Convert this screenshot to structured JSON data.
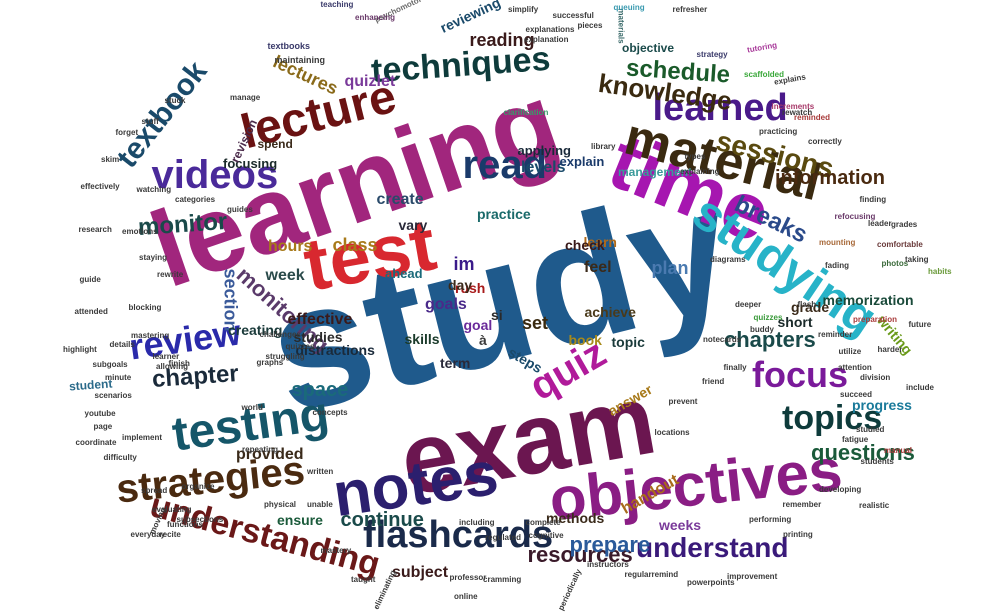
{
  "cloud": {
    "words": [
      {
        "text": "study",
        "color": "#1f5a8c"
      },
      {
        "text": "learning",
        "color": "#a1267d"
      },
      {
        "text": "exam",
        "color": "#6b1650"
      },
      {
        "text": "test",
        "color": "#d8282f"
      },
      {
        "text": "notes",
        "color": "#2b1f6e"
      },
      {
        "text": "time",
        "color": "#a616b0"
      },
      {
        "text": "objectives",
        "color": "#8a1d84"
      },
      {
        "text": "material",
        "color": "#3a2a10"
      },
      {
        "text": "studying",
        "color": "#27b3c8"
      },
      {
        "text": "testing",
        "color": "#155669"
      },
      {
        "text": "lecture",
        "color": "#6a1212"
      },
      {
        "text": "strategies",
        "color": "#4a2a10"
      },
      {
        "text": "flashcards",
        "color": "#1a2a4a"
      },
      {
        "text": "understanding",
        "color": "#6a1818"
      },
      {
        "text": "techniques",
        "color": "#0e3b3b"
      },
      {
        "text": "learned",
        "color": "#4a1a8a"
      },
      {
        "text": "read",
        "color": "#1a3a6a"
      },
      {
        "text": "review",
        "color": "#2a2aaa"
      },
      {
        "text": "videos",
        "color": "#4a2a9a"
      },
      {
        "text": "focus",
        "color": "#7a1a9a"
      },
      {
        "text": "topics",
        "color": "#0e3b3b"
      },
      {
        "text": "textbook",
        "color": "#1a4a6a"
      },
      {
        "text": "understand",
        "color": "#3a1a7a"
      },
      {
        "text": "sessions",
        "color": "#5a4a10"
      },
      {
        "text": "knowledge",
        "color": "#3a2a10"
      },
      {
        "text": "schedule",
        "color": "#1a5a2a"
      },
      {
        "text": "chapter",
        "color": "#1a2a3a"
      },
      {
        "text": "monitor",
        "color": "#1a4a4a"
      },
      {
        "text": "breaks",
        "color": "#2a4a8a"
      },
      {
        "text": "questions",
        "color": "#1a5a3a"
      },
      {
        "text": "quiz",
        "color": "#b01a9a"
      },
      {
        "text": "resources",
        "color": "#3a1a2a"
      },
      {
        "text": "information",
        "color": "#4a2a10"
      },
      {
        "text": "chapters",
        "color": "#1a4a4a"
      },
      {
        "text": "prepare",
        "color": "#2a5a9a"
      },
      {
        "text": "continue",
        "color": "#1a4a4a"
      },
      {
        "text": "space",
        "color": "#1a6a7a"
      },
      {
        "text": "reading",
        "color": "#3a1a1a"
      },
      {
        "text": "monitoring",
        "color": "#5a3a6a"
      },
      {
        "text": "lectures",
        "color": "#8a6a1a"
      },
      {
        "text": "quizlet",
        "color": "#7a3a9a"
      },
      {
        "text": "section",
        "color": "#3a5a9a"
      },
      {
        "text": "class",
        "color": "#a87a1a"
      },
      {
        "text": "create",
        "color": "#2a4a6a"
      },
      {
        "text": "week",
        "color": "#2a4a4a"
      },
      {
        "text": "plan",
        "color": "#4a7ab0"
      },
      {
        "text": "feel",
        "color": "#3a2a1a"
      },
      {
        "text": "set",
        "color": "#3a2a10"
      },
      {
        "text": "im",
        "color": "#3a1a8a"
      },
      {
        "text": "rush",
        "color": "#a81a1a"
      },
      {
        "text": "learn",
        "color": "#b06a1a"
      },
      {
        "text": "levels",
        "color": "#1a4a6a"
      },
      {
        "text": "hours",
        "color": "#a87a1a"
      },
      {
        "text": "memorization",
        "color": "#1a4a3a"
      },
      {
        "text": "writing",
        "color": "#6a9a1a"
      },
      {
        "text": "provided",
        "color": "#3a2a1a"
      },
      {
        "text": "handout",
        "color": "#a86a1a"
      },
      {
        "text": "progress",
        "color": "#1a7a9a"
      },
      {
        "text": "subject",
        "color": "#3a1a1a"
      },
      {
        "text": "methods",
        "color": "#3a2a1a"
      },
      {
        "text": "ensure",
        "color": "#1a5a3a"
      },
      {
        "text": "weeks",
        "color": "#7a3a9a"
      },
      {
        "text": "effective",
        "color": "#3a1a1a"
      },
      {
        "text": "creating",
        "color": "#1a3a3a"
      },
      {
        "text": "studies",
        "color": "#2a2a2a"
      },
      {
        "text": "distractions",
        "color": "#1a2a3a"
      },
      {
        "text": "grade",
        "color": "#3a2a1a"
      },
      {
        "text": "short",
        "color": "#1a2a2a"
      },
      {
        "text": "topic",
        "color": "#1a3a3a"
      },
      {
        "text": "answer",
        "color": "#a87a1a"
      },
      {
        "text": "steps",
        "color": "#1a4a6a"
      },
      {
        "text": "goals",
        "color": "#4a2a8a"
      },
      {
        "text": "goal",
        "color": "#6a2a9a"
      },
      {
        "text": "day",
        "color": "#3a2a1a"
      },
      {
        "text": "skills",
        "color": "#1a3a2a"
      },
      {
        "text": "term",
        "color": "#2a2a3a"
      },
      {
        "text": "book",
        "color": "#a88a1a"
      },
      {
        "text": "achieve",
        "color": "#4a3a1a"
      },
      {
        "text": "check",
        "color": "#3a1a1a"
      },
      {
        "text": "vary",
        "color": "#2a2a3a"
      },
      {
        "text": "practice",
        "color": "#1a6a6a"
      },
      {
        "text": "focusing",
        "color": "#1a2a2a"
      },
      {
        "text": "revision",
        "color": "#4a2a4a"
      },
      {
        "text": "spend",
        "color": "#3a2a1a"
      },
      {
        "text": "applying",
        "color": "#1a2a3a"
      },
      {
        "text": "explain",
        "color": "#1a3a6a"
      },
      {
        "text": "management",
        "color": "#3a9a9a"
      },
      {
        "text": "objective",
        "color": "#1a4a4a"
      },
      {
        "text": "student",
        "color": "#2a6a8a"
      },
      {
        "text": "ahead",
        "color": "#1a6a7a"
      },
      {
        "text": "si",
        "color": "#2a2a2a"
      },
      {
        "text": "à",
        "color": "#3a3a3a"
      },
      {
        "text": "reviewing",
        "color": "#1a4a6a"
      },
      {
        "text": "psychomotor",
        "color": "#6a6a6a"
      },
      {
        "text": "textbooks",
        "color": "#3a3a6a"
      },
      {
        "text": "maintaining",
        "color": "#3a3a3a"
      },
      {
        "text": "enhancing",
        "color": "#6a3a6a"
      },
      {
        "text": "teaching",
        "color": "#3a3a6a"
      },
      {
        "text": "simplify",
        "color": "#3a3a3a"
      },
      {
        "text": "successful",
        "color": "#3a3a3a"
      },
      {
        "text": "materials",
        "color": "#3a6a6a"
      },
      {
        "text": "explanation",
        "color": "#3a3a3a"
      },
      {
        "text": "explanations",
        "color": "#3a3a3a"
      },
      {
        "text": "pieces",
        "color": "#3a3a3a"
      },
      {
        "text": "queuing",
        "color": "#3a9ab0"
      },
      {
        "text": "refresher",
        "color": "#3a3a3a"
      },
      {
        "text": "strategy",
        "color": "#3a3a6a"
      },
      {
        "text": "scaffolded",
        "color": "#3aa83a"
      },
      {
        "text": "tutoring",
        "color": "#a83a9a"
      },
      {
        "text": "explains",
        "color": "#3a3a3a"
      },
      {
        "text": "clarification",
        "color": "#3a9a6a"
      },
      {
        "text": "library",
        "color": "#3a3a3a"
      },
      {
        "text": "practicing",
        "color": "#3a3a3a"
      },
      {
        "text": "rewatch",
        "color": "#3a3a3a"
      },
      {
        "text": "increments",
        "color": "#a83a6a"
      },
      {
        "text": "reminded",
        "color": "#a83a3a"
      },
      {
        "text": "correctly",
        "color": "#3a3a3a"
      },
      {
        "text": "types",
        "color": "#3a3a3a"
      },
      {
        "text": "explaining",
        "color": "#3a3a3a"
      },
      {
        "text": "finding",
        "color": "#3a3a3a"
      },
      {
        "text": "leader",
        "color": "#3a3a3a"
      },
      {
        "text": "diagrams",
        "color": "#3a3a3a"
      },
      {
        "text": "refocusing",
        "color": "#6a3a6a"
      },
      {
        "text": "grades",
        "color": "#3a3a3a"
      },
      {
        "text": "mounting",
        "color": "#a86a3a"
      },
      {
        "text": "photos",
        "color": "#3a6a3a"
      },
      {
        "text": "comfortable",
        "color": "#6a3a3a"
      },
      {
        "text": "taking",
        "color": "#3a3a3a"
      },
      {
        "text": "habits",
        "color": "#6a9a3a"
      },
      {
        "text": "fading",
        "color": "#3a3a3a"
      },
      {
        "text": "flash",
        "color": "#3a3a3a"
      },
      {
        "text": "deeper",
        "color": "#3a3a3a"
      },
      {
        "text": "quizzes",
        "color": "#3a9a3a"
      },
      {
        "text": "preparation",
        "color": "#a83a3a"
      },
      {
        "text": "future",
        "color": "#3a3a3a"
      },
      {
        "text": "buddy",
        "color": "#3a3a3a"
      },
      {
        "text": "notecards",
        "color": "#3a3a3a"
      },
      {
        "text": "reminder",
        "color": "#3a3a3a"
      },
      {
        "text": "harder",
        "color": "#3a3a3a"
      },
      {
        "text": "utilize",
        "color": "#3a3a3a"
      },
      {
        "text": "attention",
        "color": "#3a3a3a"
      },
      {
        "text": "finally",
        "color": "#3a3a3a"
      },
      {
        "text": "friend",
        "color": "#3a3a3a"
      },
      {
        "text": "prevent",
        "color": "#3a3a3a"
      },
      {
        "text": "division",
        "color": "#3a3a3a"
      },
      {
        "text": "succeed",
        "color": "#3a3a3a"
      },
      {
        "text": "include",
        "color": "#3a3a3a"
      },
      {
        "text": "studied",
        "color": "#3a3a3a"
      },
      {
        "text": "fatigue",
        "color": "#3a3a3a"
      },
      {
        "text": "locations",
        "color": "#3a3a3a"
      },
      {
        "text": "manual",
        "color": "#a83a3a"
      },
      {
        "text": "students",
        "color": "#3a3a3a"
      },
      {
        "text": "remember",
        "color": "#3a3a3a"
      },
      {
        "text": "developing",
        "color": "#3a3a3a"
      },
      {
        "text": "realistic",
        "color": "#3a3a3a"
      },
      {
        "text": "performing",
        "color": "#3a3a3a"
      },
      {
        "text": "printing",
        "color": "#3a3a3a"
      },
      {
        "text": "improvement",
        "color": "#3a3a3a"
      },
      {
        "text": "powerpoints",
        "color": "#3a3a3a"
      },
      {
        "text": "remind",
        "color": "#3a3a3a"
      },
      {
        "text": "regular",
        "color": "#3a3a3a"
      },
      {
        "text": "instructors",
        "color": "#3a3a3a"
      },
      {
        "text": "periodically",
        "color": "#3a3a3a"
      },
      {
        "text": "professor",
        "color": "#3a3a3a"
      },
      {
        "text": "online",
        "color": "#3a3a3a"
      },
      {
        "text": "cramming",
        "color": "#3a3a3a"
      },
      {
        "text": "complete",
        "color": "#3a3a3a"
      },
      {
        "text": "cognitive",
        "color": "#3a3a3a"
      },
      {
        "text": "including",
        "color": "#3a3a3a"
      },
      {
        "text": "regulated",
        "color": "#3a3a3a"
      },
      {
        "text": "mastery",
        "color": "#3a3a3a"
      },
      {
        "text": "taught",
        "color": "#3a3a3a"
      },
      {
        "text": "eliminating",
        "color": "#3a3a3a"
      },
      {
        "text": "spread",
        "color": "#3a3a3a"
      },
      {
        "text": "everyday",
        "color": "#3a3a3a"
      },
      {
        "text": "moving",
        "color": "#3a3a3a"
      },
      {
        "text": "functions",
        "color": "#3a3a3a"
      },
      {
        "text": "recite",
        "color": "#3a3a3a"
      },
      {
        "text": "evaluating",
        "color": "#3a3a3a"
      },
      {
        "text": "subsections",
        "color": "#3a3a3a"
      },
      {
        "text": "physical",
        "color": "#3a3a3a"
      },
      {
        "text": "unable",
        "color": "#3a3a3a"
      },
      {
        "text": "organize",
        "color": "#3a3a3a"
      },
      {
        "text": "difficulty",
        "color": "#3a3a3a"
      },
      {
        "text": "coordinate",
        "color": "#3a3a3a"
      },
      {
        "text": "page",
        "color": "#3a3a3a"
      },
      {
        "text": "youtube",
        "color": "#3a3a3a"
      },
      {
        "text": "implement",
        "color": "#3a3a3a"
      },
      {
        "text": "written",
        "color": "#3a3a3a"
      },
      {
        "text": "repeating",
        "color": "#3a3a3a"
      },
      {
        "text": "highlight",
        "color": "#3a3a3a"
      },
      {
        "text": "subgoals",
        "color": "#3a3a3a"
      },
      {
        "text": "minute",
        "color": "#3a3a3a"
      },
      {
        "text": "scenarios",
        "color": "#3a3a3a"
      },
      {
        "text": "details",
        "color": "#3a3a3a"
      },
      {
        "text": "attended",
        "color": "#3a3a3a"
      },
      {
        "text": "blocking",
        "color": "#3a3a3a"
      },
      {
        "text": "learner",
        "color": "#3a3a3a"
      },
      {
        "text": "finish",
        "color": "#3a3a3a"
      },
      {
        "text": "allowing",
        "color": "#3a3a3a"
      },
      {
        "text": "concepts",
        "color": "#3a3a3a"
      },
      {
        "text": "world",
        "color": "#3a3a3a"
      },
      {
        "text": "graphs",
        "color": "#3a3a3a"
      },
      {
        "text": "struggling",
        "color": "#3a3a3a"
      },
      {
        "text": "quizzes",
        "color": "#3a3a3a"
      },
      {
        "text": "challenges",
        "color": "#3a3a3a"
      },
      {
        "text": "mastering",
        "color": "#3a3a3a"
      },
      {
        "text": "guide",
        "color": "#3a3a3a"
      },
      {
        "text": "research",
        "color": "#3a3a3a"
      },
      {
        "text": "emotions",
        "color": "#3a3a3a"
      },
      {
        "text": "staying",
        "color": "#3a3a3a"
      },
      {
        "text": "rewrite",
        "color": "#3a3a3a"
      },
      {
        "text": "guides",
        "color": "#3a3a3a"
      },
      {
        "text": "categories",
        "color": "#3a3a3a"
      },
      {
        "text": "watching",
        "color": "#3a3a3a"
      },
      {
        "text": "effectively",
        "color": "#3a3a3a"
      },
      {
        "text": "skim",
        "color": "#3a3a3a"
      },
      {
        "text": "forget",
        "color": "#3a3a3a"
      },
      {
        "text": "stuff",
        "color": "#3a3a3a"
      },
      {
        "text": "stuck",
        "color": "#3a3a3a"
      },
      {
        "text": "manage",
        "color": "#3a3a3a"
      }
    ]
  }
}
